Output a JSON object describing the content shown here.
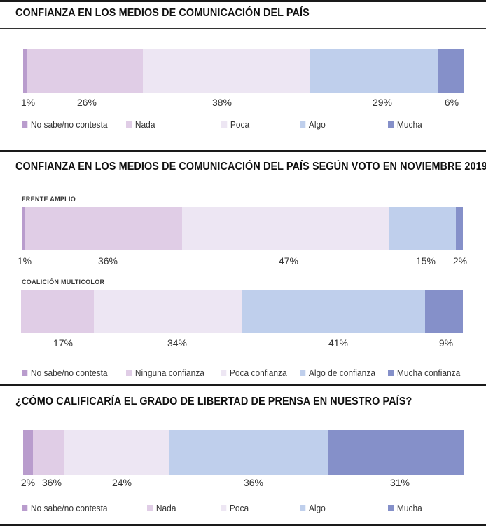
{
  "colors": {
    "no_sabe": "#b99ccd",
    "nada": "#e0cde6",
    "poca": "#ede6f3",
    "algo": "#bfcfec",
    "mucha": "#8590c9"
  },
  "sections": [
    {
      "title": "CONFIANZA EN LOS MEDIOS DE COMUNICACIÓN DEL PAÍS",
      "legend": [
        "No sabe/no contesta",
        "Nada",
        "Poca",
        "Algo",
        "Mucha"
      ]
    },
    {
      "title": "CONFIANZA EN LOS MEDIOS DE COMUNICACIÓN DEL PAÍS SEGÚN VOTO EN NOVIEMBRE 2019",
      "sublabels": [
        "FRENTE AMPLIO",
        "COALICIÓN MULTICOLOR"
      ],
      "legend": [
        "No sabe/no contesta",
        "Ninguna confianza",
        "Poca confianza",
        "Algo de confianza",
        "Mucha confianza"
      ]
    },
    {
      "title": "¿CÓMO CALIFICARÍA EL GRADO DE LIBERTAD DE PRENSA EN NUESTRO PAÍS?",
      "legend": [
        "No sabe/no contesta",
        "Nada",
        "Poca",
        "Algo",
        "Mucha"
      ]
    }
  ],
  "chart_data": [
    {
      "type": "bar",
      "title": "CONFIANZA EN LOS MEDIOS DE COMUNICACIÓN DEL PAÍS",
      "categories": [
        "No sabe/no contesta",
        "Nada",
        "Poca",
        "Algo",
        "Mucha"
      ],
      "values": [
        1,
        26,
        38,
        29,
        6
      ],
      "labels": [
        "1%",
        "26%",
        "38%",
        "29%",
        "6%"
      ],
      "stacked": true,
      "orientation": "horizontal"
    },
    {
      "type": "bar",
      "title": "FRENTE AMPLIO",
      "categories": [
        "No sabe/no contesta",
        "Ninguna confianza",
        "Poca confianza",
        "Algo de confianza",
        "Mucha confianza"
      ],
      "values": [
        1,
        36,
        47,
        15,
        2
      ],
      "labels": [
        "1%",
        "36%",
        "47%",
        "15%",
        "2%"
      ],
      "stacked": true,
      "orientation": "horizontal"
    },
    {
      "type": "bar",
      "title": "COALICIÓN MULTICOLOR",
      "categories": [
        "Ninguna confianza",
        "Poca confianza",
        "Algo de confianza",
        "Mucha confianza"
      ],
      "values": [
        17,
        34,
        41,
        9
      ],
      "labels": [
        "17%",
        "34%",
        "41%",
        "9%"
      ],
      "stacked": true,
      "orientation": "horizontal"
    },
    {
      "type": "bar",
      "title": "¿CÓMO CALIFICARÍA EL GRADO DE LIBERTAD DE PRENSA EN NUESTRO PAÍS?",
      "categories": [
        "No sabe/no contesta",
        "Nada",
        "Poca",
        "Algo",
        "Mucha"
      ],
      "values": [
        2,
        36,
        24,
        36,
        31
      ],
      "labels": [
        "2%",
        "36%",
        "24%",
        "36%",
        "31%"
      ],
      "stacked": true,
      "orientation": "horizontal"
    }
  ]
}
